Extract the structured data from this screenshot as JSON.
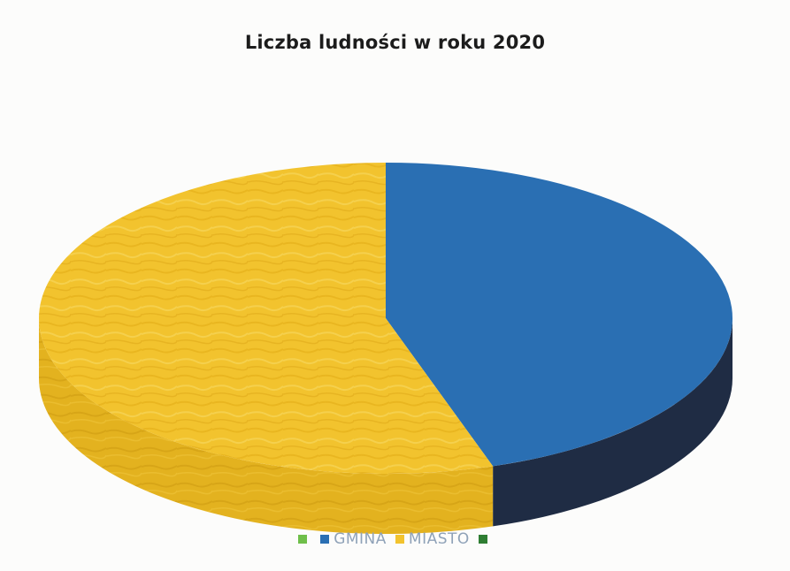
{
  "chart_data": {
    "type": "pie",
    "title": "Liczba ludności w roku 2020",
    "style": "3d",
    "slices": [
      {
        "name": "GMINA",
        "value": 45,
        "color": "#2a6fb3",
        "side_color": "#1f2c44"
      },
      {
        "name": "MIASTO",
        "value": 55,
        "color": "#f2c32e",
        "side_color": "#e8b91c"
      }
    ],
    "legend": [
      {
        "label": "",
        "color": "#6fbf4a"
      },
      {
        "label": "GMINA",
        "color": "#2a6fb3"
      },
      {
        "label": "MIASTO",
        "color": "#f2c32e"
      },
      {
        "label": "",
        "color": "#2e7d32"
      }
    ],
    "legend_position": "bottom"
  }
}
